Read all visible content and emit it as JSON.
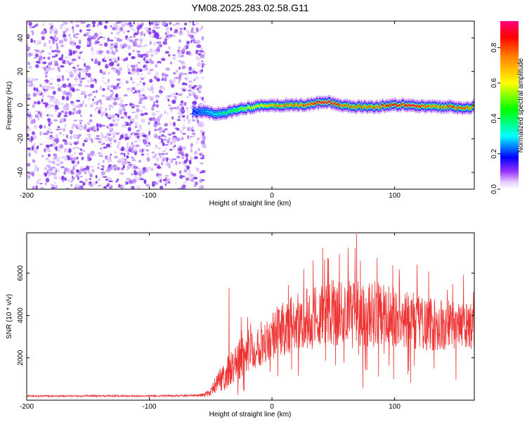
{
  "title": "YM08.2025.283.02.58.G11",
  "chart_data": [
    {
      "type": "heatmap",
      "name": "spectrogram",
      "xlabel": "Height of straight line (km)",
      "ylabel": "Frequency (Hz)",
      "xlim": [
        -200,
        165
      ],
      "ylim": [
        -50,
        50
      ],
      "xticks": [
        -200,
        -100,
        0,
        100
      ],
      "yticks": [
        -40,
        -20,
        0,
        20,
        40
      ],
      "xtick_labels": [
        "-200",
        "-100",
        "0",
        "100"
      ],
      "ytick_labels": [
        "-40",
        "-20",
        "0",
        "20",
        "40"
      ],
      "noise_region_x": [
        -200,
        -55
      ],
      "signal_ridge": {
        "x": [
          -65,
          -55,
          -45,
          -35,
          -25,
          -15,
          -5,
          5,
          15,
          25,
          35,
          45,
          55,
          65,
          75,
          85,
          95,
          105,
          115,
          125,
          135,
          145,
          155,
          165
        ],
        "freq": [
          -4,
          -4,
          -5,
          -4,
          -2,
          -1,
          0,
          0,
          0,
          0,
          1,
          2,
          0,
          -1,
          -1,
          -1,
          0,
          0,
          0,
          -1,
          -1,
          -1,
          -2,
          -1
        ],
        "amplitude": [
          0.2,
          0.3,
          0.35,
          0.45,
          0.55,
          0.65,
          0.7,
          0.8,
          0.8,
          0.85,
          0.9,
          0.95,
          0.85,
          0.8,
          0.8,
          0.85,
          0.9,
          0.9,
          0.95,
          0.85,
          0.8,
          0.85,
          0.85,
          0.8
        ]
      },
      "colorbar": {
        "label": "Normalized spectral amplitude",
        "range": [
          0.0,
          0.95
        ],
        "ticks": [
          0.0,
          0.2,
          0.4,
          0.6,
          0.8
        ],
        "tick_labels": [
          "0.0",
          "0.2",
          "0.4",
          "0.6",
          "0.8"
        ],
        "stops": [
          {
            "v": 0.0,
            "color": "#ffffff"
          },
          {
            "v": 0.04,
            "color": "#e6ccff"
          },
          {
            "v": 0.1,
            "color": "#9933ff"
          },
          {
            "v": 0.18,
            "color": "#0000ff"
          },
          {
            "v": 0.3,
            "color": "#00ffff"
          },
          {
            "v": 0.45,
            "color": "#00ff00"
          },
          {
            "v": 0.6,
            "color": "#ffff00"
          },
          {
            "v": 0.75,
            "color": "#ff8000"
          },
          {
            "v": 0.86,
            "color": "#ff0000"
          },
          {
            "v": 0.95,
            "color": "#ff0080"
          }
        ]
      }
    },
    {
      "type": "line",
      "name": "snr",
      "xlabel": "Height of straight line (km)",
      "ylabel": "SNR (10 * v/v)",
      "xlim": [
        -200,
        165
      ],
      "ylim": [
        0,
        7900
      ],
      "xticks": [
        -200,
        -100,
        0,
        100
      ],
      "yticks": [
        2000,
        4000,
        6000
      ],
      "xtick_labels": [
        "-200",
        "-100",
        "0",
        "100"
      ],
      "ytick_labels": [
        "2000",
        "4000",
        "6000"
      ],
      "series": [
        {
          "name": "SNR",
          "color": "#ee3333",
          "x": [
            -200,
            -150,
            -100,
            -60,
            -50,
            -45,
            -40,
            -35,
            -30,
            -20,
            -10,
            0,
            10,
            20,
            30,
            40,
            50,
            60,
            70,
            80,
            90,
            100,
            110,
            120,
            130,
            140,
            150,
            165
          ],
          "mean": [
            200,
            200,
            200,
            220,
            350,
            900,
            1000,
            1400,
            1700,
            2300,
            2700,
            3100,
            3400,
            3700,
            3800,
            4000,
            4100,
            4100,
            4200,
            4100,
            4000,
            3900,
            3800,
            3700,
            3600,
            3500,
            3500,
            3400
          ],
          "spread": [
            40,
            40,
            40,
            50,
            200,
            500,
            600,
            800,
            900,
            1000,
            1100,
            1200,
            1300,
            1400,
            1500,
            1500,
            1600,
            1700,
            1700,
            1600,
            1500,
            1400,
            1400,
            1300,
            1300,
            1200,
            1200,
            1100
          ],
          "peaks": [
            {
              "x": -35,
              "y": 5300
            },
            {
              "x": 62,
              "y": 7200
            },
            {
              "x": 69,
              "y": 7850
            },
            {
              "x": 55,
              "y": 6900
            }
          ]
        }
      ]
    }
  ]
}
